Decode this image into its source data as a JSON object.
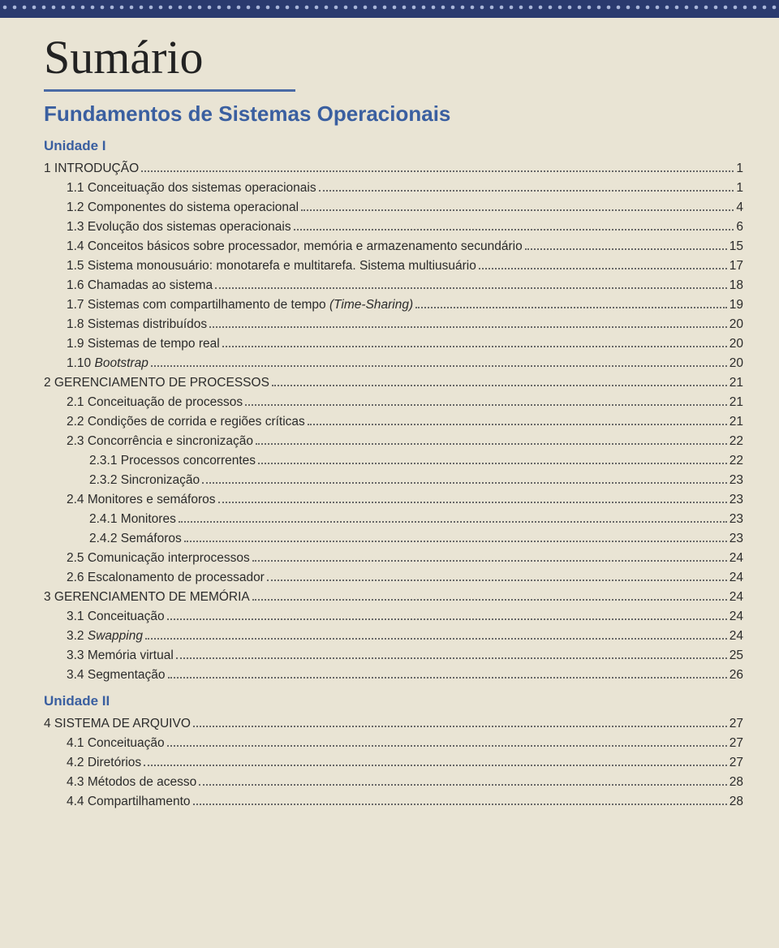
{
  "colors": {
    "top_border_bg": "#2a3a6e",
    "top_border_wave": "#a8b5d8",
    "page_bg": "#e9e4d4",
    "title_text": "#222222",
    "title_underline": "#4a6aa5",
    "accent_text": "#3a5fa0",
    "body_text": "#2b2b2b",
    "dot_leader": "#666666"
  },
  "typography": {
    "title_family": "Georgia, serif",
    "title_size_pt": 44,
    "book_title_size_pt": 20,
    "unit_label_size_pt": 13,
    "body_size_pt": 11.5
  },
  "page_title": "Sumário",
  "book_title": "Fundamentos de Sistemas Operacionais",
  "units": [
    {
      "label": "Unidade I"
    },
    {
      "label": "Unidade II"
    }
  ],
  "toc": {
    "u1": [
      {
        "lvl": 0,
        "label": "1 INTRODUÇÃO",
        "page": "1"
      },
      {
        "lvl": 1,
        "label": "1.1 Conceituação dos sistemas operacionais",
        "page": "1"
      },
      {
        "lvl": 1,
        "label": "1.2 Componentes do sistema operacional",
        "page": "4"
      },
      {
        "lvl": 1,
        "label": "1.3 Evolução dos sistemas operacionais",
        "page": "6"
      },
      {
        "lvl": 1,
        "label": "1.4 Conceitos básicos sobre processador, memória e armazenamento secundário",
        "page": "15"
      },
      {
        "lvl": 1,
        "label": "1.5 Sistema monousuário: monotarefa e multitarefa. Sistema multiusuário",
        "page": "17"
      },
      {
        "lvl": 1,
        "label": "1.6 Chamadas ao sistema",
        "page": "18"
      },
      {
        "lvl": 1,
        "label": "1.7 Sistemas com compartilhamento de tempo ",
        "italic_tail": "(Time-Sharing)",
        "page": "19"
      },
      {
        "lvl": 1,
        "label": "1.8 Sistemas distribuídos",
        "page": "20"
      },
      {
        "lvl": 1,
        "label": "1.9 Sistemas de tempo real",
        "page": "20"
      },
      {
        "lvl": 1,
        "label": "1.10 ",
        "italic_tail": "Bootstrap",
        "page": "20"
      },
      {
        "lvl": 0,
        "label": "2 GERENCIAMENTO DE PROCESSOS",
        "page": "21"
      },
      {
        "lvl": 1,
        "label": "2.1 Conceituação de processos",
        "page": "21"
      },
      {
        "lvl": 1,
        "label": "2.2 Condições de corrida e regiões críticas",
        "page": "21"
      },
      {
        "lvl": 1,
        "label": "2.3 Concorrência e sincronização",
        "page": "22"
      },
      {
        "lvl": 2,
        "label": "2.3.1 Processos concorrentes",
        "page": "22"
      },
      {
        "lvl": 2,
        "label": "2.3.2 Sincronização",
        "page": "23"
      },
      {
        "lvl": 1,
        "label": "2.4 Monitores e semáforos",
        "page": "23"
      },
      {
        "lvl": 2,
        "label": "2.4.1 Monitores",
        "page": "23"
      },
      {
        "lvl": 2,
        "label": "2.4.2 Semáforos",
        "page": "23"
      },
      {
        "lvl": 1,
        "label": "2.5 Comunicação interprocessos",
        "page": "24"
      },
      {
        "lvl": 1,
        "label": "2.6 Escalonamento de processador",
        "page": "24"
      },
      {
        "lvl": 0,
        "label": "3 GERENCIAMENTO DE MEMÓRIA",
        "page": "24"
      },
      {
        "lvl": 1,
        "label": "3.1 Conceituação",
        "page": "24"
      },
      {
        "lvl": 1,
        "label": "3.2 ",
        "italic_tail": "Swapping",
        "page": "24"
      },
      {
        "lvl": 1,
        "label": "3.3 Memória virtual",
        "page": "25"
      },
      {
        "lvl": 1,
        "label": "3.4 Segmentação",
        "page": "26"
      }
    ],
    "u2": [
      {
        "lvl": 0,
        "label": "4 SISTEMA DE ARQUIVO",
        "page": "27"
      },
      {
        "lvl": 1,
        "label": "4.1 Conceituação",
        "page": "27"
      },
      {
        "lvl": 1,
        "label": "4.2 Diretórios",
        "page": "27"
      },
      {
        "lvl": 1,
        "label": "4.3 Métodos de acesso",
        "page": "28"
      },
      {
        "lvl": 1,
        "label": "4.4 Compartilhamento",
        "page": "28"
      }
    ]
  }
}
